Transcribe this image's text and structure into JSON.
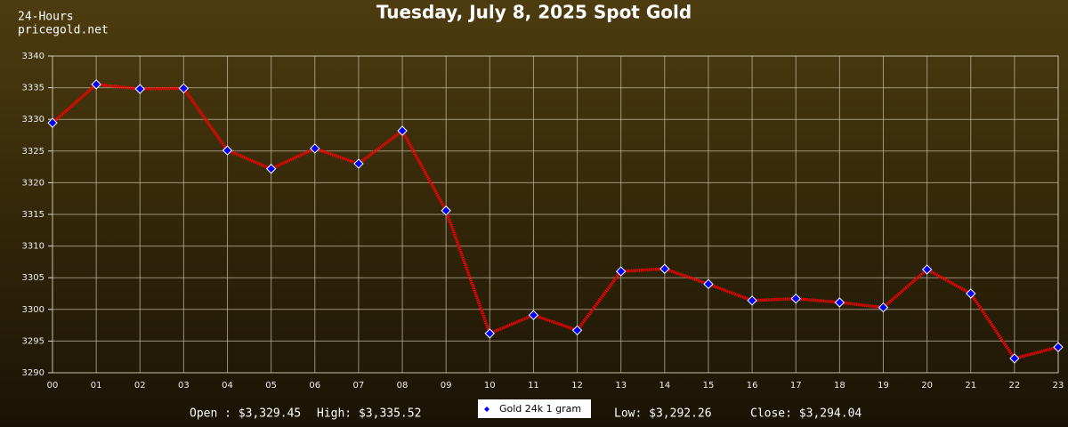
{
  "chart_data": {
    "type": "line",
    "title": "Tuesday, July 8, 2025 Spot Gold",
    "subtitle": "24-Hours",
    "source": "pricegold.net",
    "categories": [
      "00",
      "01",
      "02",
      "03",
      "04",
      "05",
      "06",
      "07",
      "08",
      "09",
      "10",
      "11",
      "12",
      "13",
      "14",
      "15",
      "16",
      "17",
      "18",
      "19",
      "20",
      "21",
      "22",
      "23"
    ],
    "series": [
      {
        "name": "Gold 24k 1 gram",
        "color": "#ff0000",
        "marker_color": "#0000ff",
        "values": [
          3329.45,
          3335.52,
          3334.8,
          3334.9,
          3325.1,
          3322.2,
          3325.4,
          3323.0,
          3328.2,
          3315.6,
          3296.2,
          3299.1,
          3296.7,
          3306.0,
          3306.4,
          3304.0,
          3301.4,
          3301.7,
          3301.1,
          3300.3,
          3306.3,
          3302.5,
          3292.26,
          3294.04
        ]
      }
    ],
    "ylim": [
      3290,
      3340
    ],
    "yticks": [
      3290,
      3295,
      3300,
      3305,
      3310,
      3315,
      3320,
      3325,
      3330,
      3335,
      3340
    ],
    "grid": true,
    "summary": [
      "Open : $3,329.45",
      "High: $3,335.52",
      "Low: $3,292.26",
      "Close: $3,294.04"
    ]
  }
}
